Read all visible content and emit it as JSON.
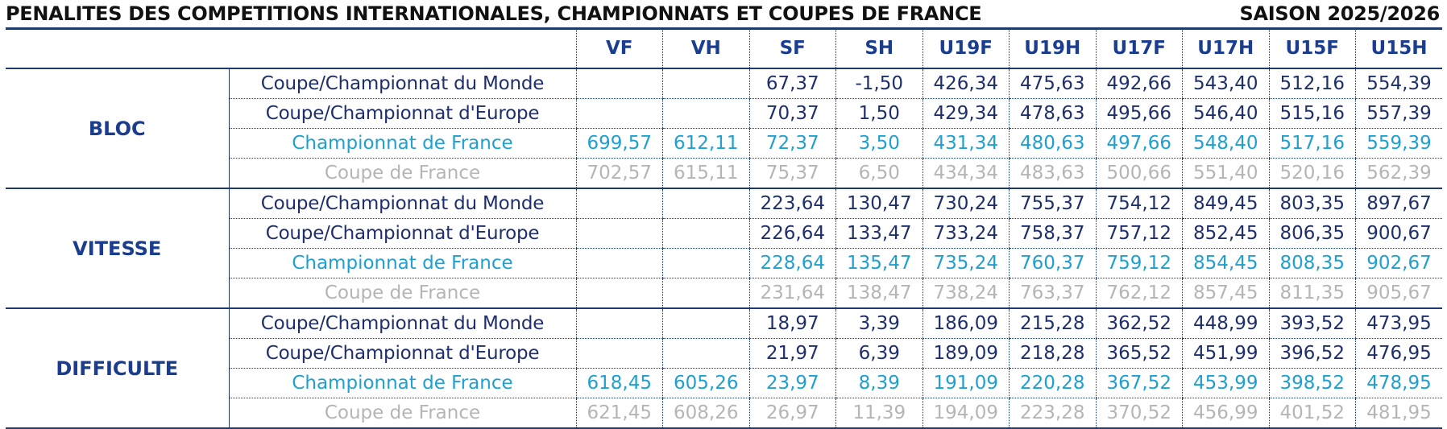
{
  "header": {
    "title": "PENALITES DES COMPETITIONS INTERNATIONALES, CHAMPIONNATS ET COUPES DE FRANCE",
    "season": "SAISON 2025/2026"
  },
  "table": {
    "columns": [
      "VF",
      "VH",
      "SF",
      "SH",
      "U19F",
      "U19H",
      "U17F",
      "U17H",
      "U15F",
      "U15H"
    ],
    "sections": [
      {
        "discipline": "BLOC",
        "rows": [
          {
            "competition": "Coupe/Championnat du Monde",
            "values": [
              "",
              "",
              "67,37",
              "-1,50",
              "426,34",
              "475,63",
              "492,66",
              "543,40",
              "512,16",
              "554,39"
            ]
          },
          {
            "competition": "Coupe/Championnat d'Europe",
            "values": [
              "",
              "",
              "70,37",
              "1,50",
              "429,34",
              "478,63",
              "495,66",
              "546,40",
              "515,16",
              "557,39"
            ]
          },
          {
            "competition": "Championnat de France",
            "values": [
              "699,57",
              "612,11",
              "72,37",
              "3,50",
              "431,34",
              "480,63",
              "497,66",
              "548,40",
              "517,16",
              "559,39"
            ]
          },
          {
            "competition": "Coupe de France",
            "values": [
              "702,57",
              "615,11",
              "75,37",
              "6,50",
              "434,34",
              "483,63",
              "500,66",
              "551,40",
              "520,16",
              "562,39"
            ]
          }
        ]
      },
      {
        "discipline": "VITESSE",
        "rows": [
          {
            "competition": "Coupe/Championnat du Monde",
            "values": [
              "",
              "",
              "223,64",
              "130,47",
              "730,24",
              "755,37",
              "754,12",
              "849,45",
              "803,35",
              "897,67"
            ]
          },
          {
            "competition": "Coupe/Championnat d'Europe",
            "values": [
              "",
              "",
              "226,64",
              "133,47",
              "733,24",
              "758,37",
              "757,12",
              "852,45",
              "806,35",
              "900,67"
            ]
          },
          {
            "competition": "Championnat de France",
            "values": [
              "",
              "",
              "228,64",
              "135,47",
              "735,24",
              "760,37",
              "759,12",
              "854,45",
              "808,35",
              "902,67"
            ]
          },
          {
            "competition": "Coupe de France",
            "values": [
              "",
              "",
              "231,64",
              "138,47",
              "738,24",
              "763,37",
              "762,12",
              "857,45",
              "811,35",
              "905,67"
            ]
          }
        ]
      },
      {
        "discipline": "DIFFICULTE",
        "rows": [
          {
            "competition": "Coupe/Championnat du Monde",
            "values": [
              "",
              "",
              "18,97",
              "3,39",
              "186,09",
              "215,28",
              "362,52",
              "448,99",
              "393,52",
              "473,95"
            ]
          },
          {
            "competition": "Coupe/Championnat d'Europe",
            "values": [
              "",
              "",
              "21,97",
              "6,39",
              "189,09",
              "218,28",
              "365,52",
              "451,99",
              "396,52",
              "476,95"
            ]
          },
          {
            "competition": "Championnat de France",
            "values": [
              "618,45",
              "605,26",
              "23,97",
              "8,39",
              "191,09",
              "220,28",
              "367,52",
              "453,99",
              "398,52",
              "478,95"
            ]
          },
          {
            "competition": "Coupe de France",
            "values": [
              "621,45",
              "608,26",
              "26,97",
              "11,39",
              "194,09",
              "223,28",
              "370,52",
              "456,99",
              "401,52",
              "481,95"
            ]
          }
        ]
      }
    ]
  },
  "colors": {
    "heading_blue": "#1a3d8f",
    "international_rows": "#1f2f6b",
    "championnat_de_france": "#1fa0d0",
    "coupe_de_france": "#b5b5b5",
    "rule_line": "#1f3a6e"
  }
}
